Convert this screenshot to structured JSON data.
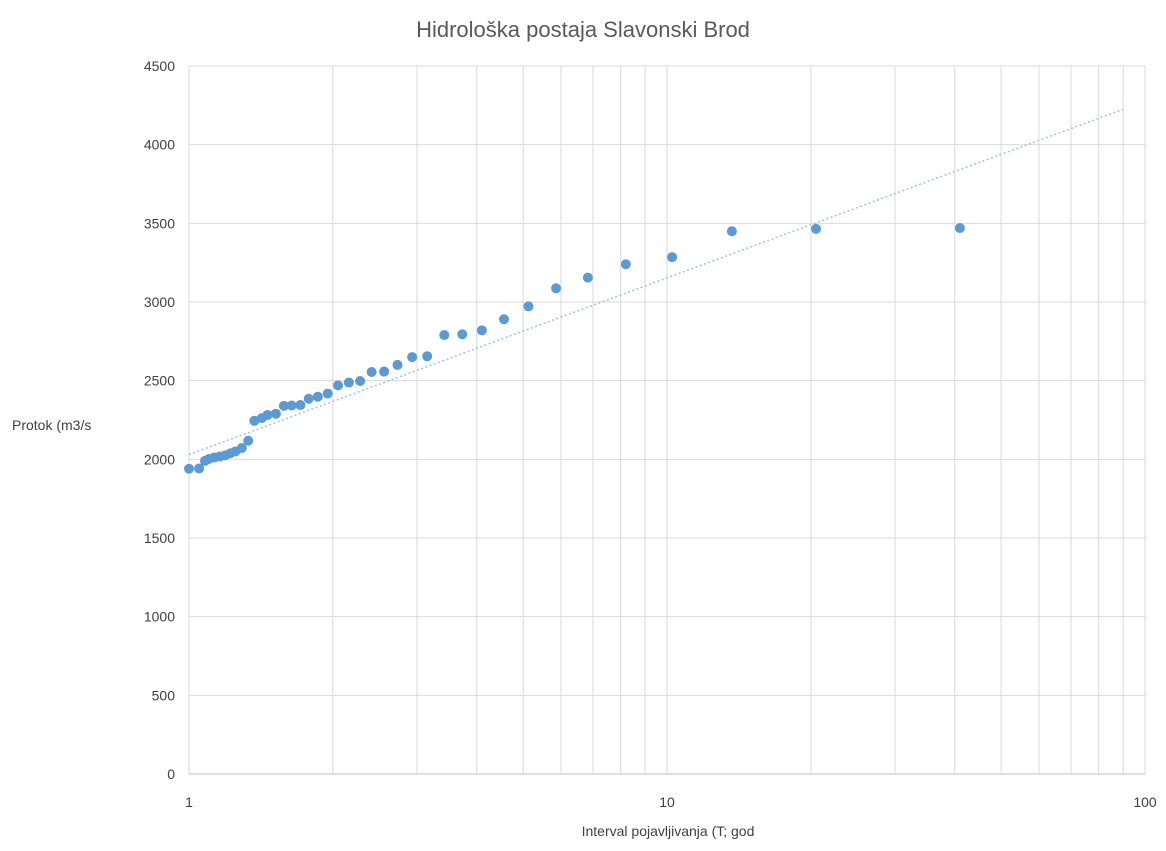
{
  "chart_data": {
    "type": "scatter",
    "title": "Hidrološka postaja Slavonski Brod",
    "xlabel": "Interval pojavljivanja (T; god",
    "ylabel": "Protok (m3/s",
    "x_scale": "log",
    "xlim": [
      1,
      100
    ],
    "ylim": [
      0,
      4500
    ],
    "x_ticks": [
      1,
      10,
      100
    ],
    "y_ticks": [
      0,
      500,
      1000,
      1500,
      2000,
      2500,
      3000,
      3500,
      4000,
      4500
    ],
    "grid": true,
    "legend": "none",
    "colors": {
      "marker": "#5b9bd5",
      "trendline": "#9dc3e6",
      "grid": "#d9d9d9",
      "text": "#404040",
      "title": "#595959"
    },
    "series": [
      {
        "x": [
          1.0,
          1.05,
          1.08,
          1.1,
          1.13,
          1.16,
          1.19,
          1.22,
          1.25,
          1.29,
          1.33,
          1.37,
          1.42,
          1.46,
          1.52,
          1.58,
          1.64,
          1.71,
          1.78,
          1.86,
          1.95,
          2.05,
          2.16,
          2.28,
          2.41,
          2.56,
          2.73,
          2.93,
          3.15,
          3.42,
          3.73,
          4.1,
          4.56,
          5.13,
          5.86,
          6.83,
          8.2,
          10.25,
          13.67,
          20.5,
          41.0
        ],
        "y": [
          1940,
          1942,
          1990,
          2002,
          2012,
          2018,
          2025,
          2038,
          2050,
          2072,
          2118,
          2245,
          2262,
          2282,
          2290,
          2340,
          2342,
          2345,
          2385,
          2398,
          2418,
          2470,
          2488,
          2498,
          2555,
          2558,
          2600,
          2650,
          2655,
          2790,
          2795,
          2820,
          2890,
          2972,
          3087,
          3155,
          3240,
          3285,
          3450,
          3465,
          3470
        ]
      }
    ],
    "trendline": {
      "type": "logarithmic",
      "x_range": [
        1,
        90
      ],
      "y_at_start": 2030,
      "y_at_end": 4225
    }
  }
}
